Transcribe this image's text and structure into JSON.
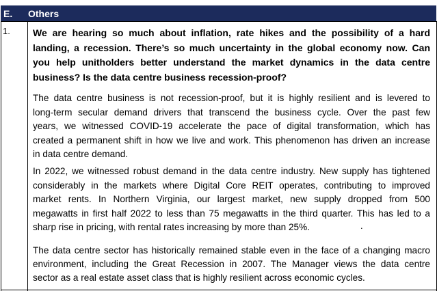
{
  "header": {
    "number": "E.",
    "title": "Others"
  },
  "rows": [
    {
      "number": "1.",
      "question_lines": [
        "We are hearing so much about inflation, rate hikes and the possibility of a hard",
        "landing, a recession. There’s so much uncertainty in the global economy now. Can",
        "you help unitholders better understand the market dynamics in the data centre",
        "business? Is the data centre business recession-proof?"
      ],
      "paragraphs": [
        [
          "The data centre business is not recession-proof, but it is highly resilient and is levered to",
          "long-term secular demand drivers that transcend the business cycle.  Over the past few",
          "years, we witnessed COVID-19 accelerate the pace of digital transformation, which has",
          "created a permanent shift in how we live and work. This phenomenon has driven an increase",
          "in data centre demand."
        ],
        [
          "In 2022, we witnessed robust demand in the data centre industry. New supply has tightened",
          "considerably in the markets where Digital Core REIT operates, contributing to improved",
          "market rents.  In Northern Virginia, our largest market, new supply dropped from 500",
          "megawatts in first half 2022 to less than 75 megawatts in the third quarter. This has led to a",
          "sharp rise in pricing, with rental rates increasing by more than 25%."
        ],
        [
          "The data centre sector has historically remained stable even in the face of a changing macro",
          "environment, including the Great Recession in 2007.  The Manager views the data centre",
          "sector as a real estate asset class that is highly resilient across economic cycles."
        ]
      ],
      "stray_mark": "."
    }
  ]
}
